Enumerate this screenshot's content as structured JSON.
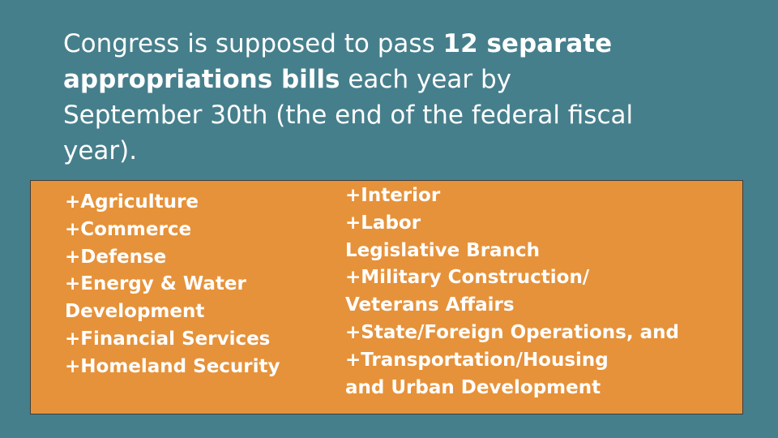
{
  "heading": {
    "lines": [
      [
        {
          "text": "Congress is supposed to pass ",
          "bold": false
        },
        {
          "text": "12 separate",
          "bold": true
        }
      ],
      [
        {
          "text": "appropriations bills",
          "bold": true
        },
        {
          "text": " each year by",
          "bold": false
        }
      ],
      [
        {
          "text": "September 30th (the end of the federal fiscal",
          "bold": false
        }
      ],
      [
        {
          "text": "year).",
          "bold": false
        }
      ]
    ]
  },
  "box": {
    "columns": [
      [
        "+Agriculture",
        "+Commerce",
        "+Defense",
        "+Energy & Water",
        "Development",
        "+Financial Services",
        "+Homeland Security"
      ],
      [
        "+Interior",
        "+Labor",
        "Legislative Branch",
        "+Military Construction/",
        "Veterans Affairs",
        "+State/Foreign Operations, and",
        "+Transportation/Housing",
        "and Urban Development"
      ]
    ]
  }
}
